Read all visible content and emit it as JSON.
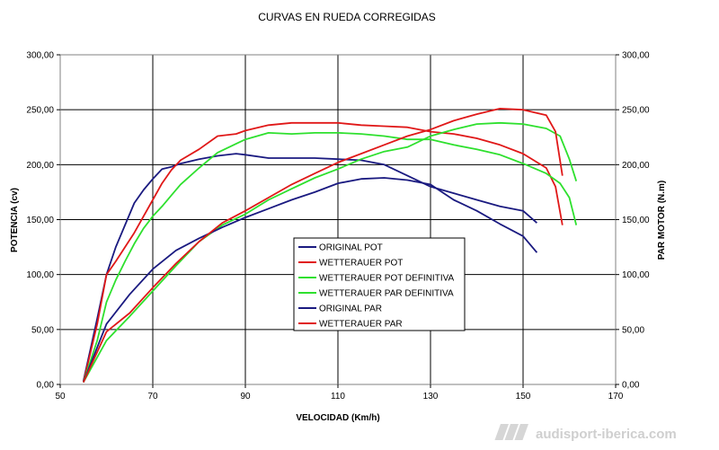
{
  "chart_data": {
    "type": "line",
    "title": "CURVAS EN RUEDA CORREGIDAS",
    "xlabel": "VELOCIDAD (Km/h)",
    "ylabel": "POTENCIA (cv)",
    "y2label": "PAR MOTOR (N.m)",
    "xlim": [
      50,
      170
    ],
    "ylim": [
      0,
      300
    ],
    "y2lim": [
      0,
      300
    ],
    "x_ticks": [
      "50",
      "70",
      "90",
      "110",
      "130",
      "150",
      "170"
    ],
    "y_ticks": [
      "0,00",
      "50,00",
      "100,00",
      "150,00",
      "200,00",
      "250,00",
      "300,00"
    ],
    "y2_ticks": [
      "0,00",
      "50,00",
      "100,00",
      "150,00",
      "200,00",
      "250,00",
      "300,00"
    ],
    "grid": true,
    "legend_position": "center",
    "series": [
      {
        "name": "ORIGINAL POT",
        "color": "#1a1a80",
        "axis": "left",
        "x": [
          55,
          58,
          60,
          62,
          64,
          66,
          68,
          70,
          72,
          74,
          76,
          80,
          84,
          88,
          90,
          95,
          100,
          105,
          110,
          115,
          120,
          125,
          130,
          135,
          140,
          145,
          150,
          153
        ],
        "y": [
          3,
          60,
          100,
          125,
          145,
          165,
          177,
          187,
          196,
          198,
          201,
          205,
          208,
          210,
          209,
          206,
          206,
          206,
          205,
          204,
          200,
          190,
          180,
          174,
          168,
          162,
          158,
          147
        ]
      },
      {
        "name": "WETTERAUER POT",
        "color": "#e01818",
        "axis": "left",
        "x": [
          55,
          58,
          60,
          62,
          64,
          66,
          68,
          70,
          72,
          74,
          76,
          80,
          84,
          88,
          90,
          95,
          100,
          105,
          110,
          115,
          120,
          125,
          130,
          135,
          140,
          145,
          150,
          155,
          157,
          158.5
        ],
        "y": [
          2,
          55,
          100,
          112,
          125,
          138,
          153,
          168,
          183,
          195,
          204,
          214,
          226,
          228,
          231,
          236,
          238,
          238,
          238,
          236,
          235,
          234,
          230,
          228,
          224,
          218,
          210,
          197,
          180,
          145
        ]
      },
      {
        "name": "WETTERAUER POT DEFINITIVA",
        "color": "#2ee02e",
        "axis": "left",
        "x": [
          55,
          58,
          60,
          62,
          64,
          66,
          68,
          70,
          72,
          74,
          76,
          80,
          84,
          88,
          90,
          95,
          100,
          105,
          110,
          115,
          120,
          125,
          130,
          135,
          140,
          145,
          150,
          155,
          158,
          160,
          161.5
        ],
        "y": [
          2,
          40,
          75,
          95,
          112,
          128,
          142,
          153,
          162,
          172,
          182,
          197,
          211,
          219,
          223,
          229,
          228,
          229,
          229,
          228,
          226,
          223,
          223,
          218,
          214,
          209,
          201,
          192,
          183,
          170,
          145
        ]
      },
      {
        "name": "WETTERAUER PAR DEFINITIVA",
        "color": "#2ee02e",
        "axis": "right",
        "x": [
          55,
          60,
          65,
          70,
          75,
          80,
          85,
          90,
          95,
          100,
          105,
          110,
          115,
          120,
          125,
          130,
          135,
          140,
          145,
          150,
          155,
          158,
          160,
          161.5
        ],
        "y": [
          2,
          40,
          62,
          85,
          108,
          130,
          145,
          155,
          168,
          178,
          188,
          196,
          205,
          212,
          216,
          226,
          232,
          237,
          238,
          237,
          233,
          226,
          205,
          185
        ]
      },
      {
        "name": "ORIGINAL PAR",
        "color": "#1a1a80",
        "axis": "right",
        "x": [
          55,
          60,
          65,
          70,
          75,
          80,
          85,
          90,
          95,
          100,
          105,
          110,
          115,
          120,
          125,
          130,
          135,
          140,
          145,
          150,
          153
        ],
        "y": [
          2,
          55,
          82,
          105,
          122,
          133,
          143,
          152,
          160,
          168,
          175,
          183,
          187,
          188,
          186,
          182,
          168,
          158,
          146,
          135,
          120
        ]
      },
      {
        "name": "WETTERAUER PAR",
        "color": "#e01818",
        "axis": "right",
        "x": [
          55,
          60,
          65,
          70,
          75,
          80,
          85,
          90,
          95,
          100,
          105,
          110,
          115,
          120,
          125,
          130,
          135,
          140,
          145,
          150,
          155,
          157,
          158.5
        ],
        "y": [
          2,
          48,
          65,
          88,
          110,
          130,
          147,
          158,
          170,
          182,
          192,
          202,
          210,
          218,
          226,
          232,
          240,
          246,
          251,
          250,
          245,
          230,
          190
        ]
      }
    ],
    "legend_order": [
      0,
      1,
      2,
      3,
      4,
      5
    ]
  },
  "watermark": {
    "text": "audisport-iberica.com"
  }
}
